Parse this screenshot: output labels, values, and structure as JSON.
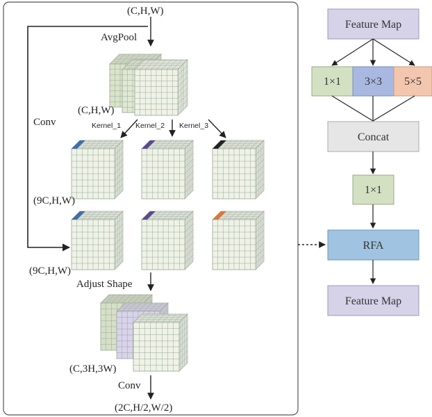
{
  "left_panel": {
    "input_dim": "(C,H,W)",
    "avgpool_label": "AvgPool",
    "conv_label": "Conv",
    "pooled_dim": "(C,H,W)",
    "kernels": [
      "Kernel_1",
      "Kernel_2",
      "Kernel_3"
    ],
    "dim_9c_top": "(9C,H,W)",
    "dim_9c_bottom": "(9C,H,W)",
    "adjust_label": "Adjust Shape",
    "dim_adjusted": "(C,3H,3W)",
    "conv_bottom_label": "Conv",
    "output_dim": "(2C,H/2,W/2)"
  },
  "right_panel": {
    "feature_map_top": "Feature Map",
    "branch_1": "1×1",
    "branch_3": "3×3",
    "branch_5": "5×5",
    "concat": "Concat",
    "conv_1x1": "1×1",
    "rfa": "RFA",
    "feature_map_bottom": "Feature Map"
  },
  "colors": {
    "feature_map": "#d6d2e8",
    "branch_1": "#d3e0c2",
    "branch_3": "#a9b8e0",
    "branch_5": "#f3c7ae",
    "concat": "#e6e6e6",
    "conv_1x1": "#d3e0c2",
    "rfa": "#9fc3e0",
    "cube_face": "#eef3e6",
    "cube_grid": "#9aa39a",
    "stripe_blue": "#3f6fa6",
    "stripe_purple": "#5a4a8e",
    "stripe_orange": "#d8783a"
  }
}
